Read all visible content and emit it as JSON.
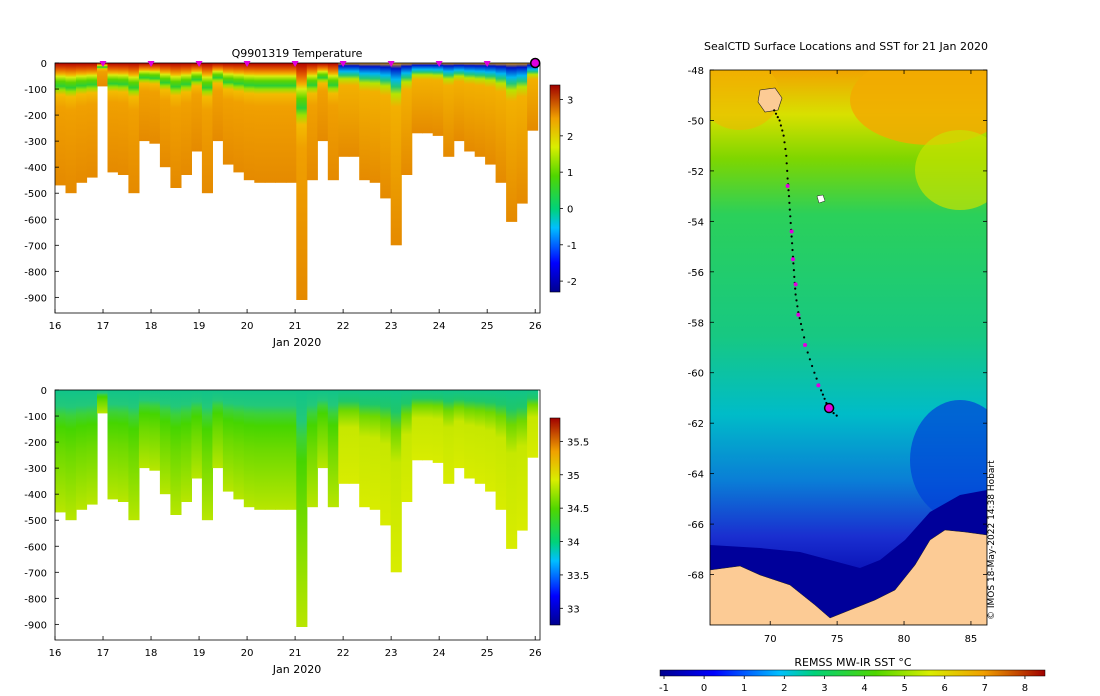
{
  "chart_data": [
    {
      "type": "heatmap",
      "id": "temperature",
      "title": "Q9901319  Temperature",
      "xlabel": "Jan 2020",
      "x_ticks": [
        "16",
        "17",
        "18",
        "19",
        "20",
        "21",
        "22",
        "23",
        "24",
        "25",
        "26"
      ],
      "xlim": [
        16,
        26.1
      ],
      "ylim": [
        -960,
        0
      ],
      "y_ticks": [
        "0",
        "-100",
        "-200",
        "-300",
        "-400",
        "-500",
        "-600",
        "-700",
        "-800",
        "-900"
      ],
      "y_tick_values": [
        0,
        -100,
        -200,
        -300,
        -400,
        -500,
        -600,
        -700,
        -800,
        -900
      ],
      "surface_markers_days": [
        17,
        18,
        19,
        20,
        21,
        22,
        23,
        24,
        25
      ],
      "current_marker_day": 26,
      "colorbar": {
        "min": -2.3,
        "max": 3.4,
        "ticks": [
          "3",
          "2",
          "1",
          "0",
          "-1",
          "-2"
        ],
        "tick_values": [
          3,
          2,
          1,
          0,
          -1,
          -2
        ]
      },
      "profile_max_depth_m": [
        470,
        500,
        460,
        440,
        90,
        420,
        430,
        500,
        300,
        310,
        400,
        480,
        430,
        340,
        500,
        300,
        390,
        420,
        450,
        460,
        460,
        460,
        460,
        910,
        450,
        300,
        450,
        360,
        360,
        450,
        460,
        520,
        700,
        430,
        270,
        270,
        280,
        360,
        300,
        340,
        360,
        390,
        460,
        610,
        540,
        260
      ]
    },
    {
      "type": "heatmap",
      "id": "salinity",
      "title": "",
      "xlabel": "Jan 2020",
      "x_ticks": [
        "16",
        "17",
        "18",
        "19",
        "20",
        "21",
        "22",
        "23",
        "24",
        "25",
        "26"
      ],
      "xlim": [
        16,
        26.1
      ],
      "ylim": [
        -960,
        0
      ],
      "y_ticks": [
        "0",
        "-100",
        "-200",
        "-300",
        "-400",
        "-500",
        "-600",
        "-700",
        "-800",
        "-900"
      ],
      "y_tick_values": [
        0,
        -100,
        -200,
        -300,
        -400,
        -500,
        -600,
        -700,
        -800,
        -900
      ],
      "colorbar": {
        "min": 32.75,
        "max": 35.85,
        "ticks": [
          "35.5",
          "35",
          "34.5",
          "34",
          "33.5",
          "33"
        ],
        "tick_values": [
          35.5,
          35,
          34.5,
          34,
          33.5,
          33
        ]
      }
    },
    {
      "type": "map",
      "id": "sst-map",
      "title": "SealCTD Surface Locations and SST for 21 Jan 2020",
      "x_ticks": [
        "70",
        "75",
        "80",
        "85"
      ],
      "x_tick_values": [
        70,
        75,
        80,
        85
      ],
      "xlim": [
        65.5,
        86.2
      ],
      "y_ticks": [
        "-48",
        "-50",
        "-52",
        "-54",
        "-56",
        "-58",
        "-60",
        "-62",
        "-64",
        "-66",
        "-68"
      ],
      "y_tick_values": [
        -48,
        -50,
        -52,
        -54,
        -56,
        -58,
        -60,
        -62,
        -64,
        -66,
        -68
      ],
      "ylim": [
        -70,
        -48
      ],
      "track": [
        [
          70.3,
          -49.6
        ],
        [
          70.7,
          -50.0
        ],
        [
          71.0,
          -50.6
        ],
        [
          71.2,
          -51.4
        ],
        [
          71.3,
          -52.3
        ],
        [
          71.4,
          -53.0
        ],
        [
          71.5,
          -53.8
        ],
        [
          71.6,
          -54.6
        ],
        [
          71.7,
          -55.4
        ],
        [
          71.8,
          -56.2
        ],
        [
          71.9,
          -56.9
        ],
        [
          72.1,
          -57.6
        ],
        [
          72.4,
          -58.3
        ],
        [
          72.8,
          -59.2
        ],
        [
          73.3,
          -60.0
        ],
        [
          73.8,
          -60.7
        ],
        [
          74.2,
          -61.2
        ],
        [
          74.5,
          -61.5
        ],
        [
          75.2,
          -61.8
        ]
      ],
      "daily_positions": [
        [
          71.3,
          -52.6
        ],
        [
          71.6,
          -54.4
        ],
        [
          71.7,
          -55.5
        ],
        [
          71.9,
          -56.5
        ],
        [
          72.1,
          -57.7
        ],
        [
          72.6,
          -58.9
        ],
        [
          73.6,
          -60.5
        ]
      ],
      "current_position": [
        74.4,
        -61.4
      ],
      "colorbar_label": "REMSS MW-IR SST °C",
      "colorbar": {
        "min": -1.1,
        "max": 8.5,
        "ticks": [
          "-1",
          "0",
          "1",
          "2",
          "3",
          "4",
          "5",
          "6",
          "7",
          "8"
        ],
        "tick_values": [
          -1,
          0,
          1,
          2,
          3,
          4,
          5,
          6,
          7,
          8
        ]
      },
      "credit": "© IMOS 18-May-2022 14:38 Hobart"
    }
  ]
}
